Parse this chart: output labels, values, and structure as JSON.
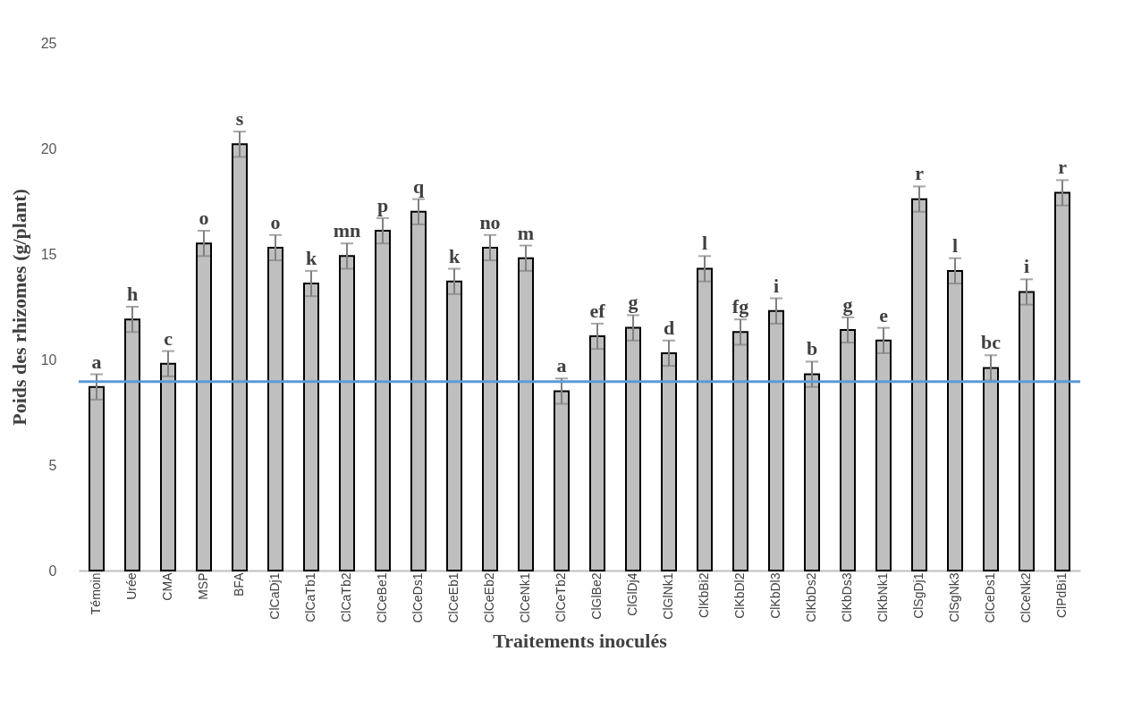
{
  "chart_data": {
    "type": "bar",
    "xlabel": "Traitements inoculés",
    "ylabel": "Poids des rhizomes (g/plant)",
    "categories": [
      "Témoin",
      "Urée",
      "CMA",
      "MSP",
      "BFA",
      "ClCaDj1",
      "ClCaTb1",
      "ClCaTb2",
      "ClCeBe1",
      "ClCeDs1",
      "ClCeEb1",
      "ClCeEb2",
      "ClCeNk1",
      "ClCeTb2",
      "ClGlBe2",
      "ClGlDj4",
      "ClGlNk1",
      "ClKbBi2",
      "ClKbDl2",
      "ClKbDl3",
      "ClKbDs2",
      "ClKbDs3",
      "ClKbNk1",
      "ClSgDj1",
      "ClSgNk3",
      "ClCeDs1",
      "ClCeNk2",
      "ClPdBi1"
    ],
    "values": [
      8.7,
      11.9,
      9.8,
      15.5,
      20.2,
      15.3,
      13.6,
      14.9,
      16.1,
      17.0,
      13.7,
      15.3,
      14.8,
      8.5,
      11.1,
      11.5,
      10.3,
      14.3,
      11.3,
      12.3,
      9.3,
      11.4,
      10.9,
      17.6,
      14.2,
      9.6,
      13.2,
      17.9
    ],
    "errors": [
      0.6,
      0.6,
      0.6,
      0.6,
      0.6,
      0.6,
      0.6,
      0.6,
      0.6,
      0.6,
      0.6,
      0.6,
      0.6,
      0.6,
      0.6,
      0.6,
      0.6,
      0.6,
      0.6,
      0.6,
      0.6,
      0.6,
      0.6,
      0.6,
      0.6,
      0.6,
      0.6,
      0.6
    ],
    "value_labels": [
      "a",
      "h",
      "c",
      "o",
      "s",
      "o",
      "k",
      "mn",
      "p",
      "q",
      "k",
      "no",
      "m",
      "a",
      "ef",
      "g",
      "d",
      "l",
      "fg",
      "i",
      "b",
      "g",
      "e",
      "r",
      "l",
      "bc",
      "i",
      "r"
    ],
    "color": "#bfbfbf",
    "ylim": [
      0,
      25
    ],
    "yticks": [
      0,
      5,
      10,
      15,
      20,
      25
    ],
    "ref_lines": [
      {
        "axis": "y",
        "value": 8.95,
        "color": "#5b9bd5"
      }
    ],
    "grid": false
  }
}
